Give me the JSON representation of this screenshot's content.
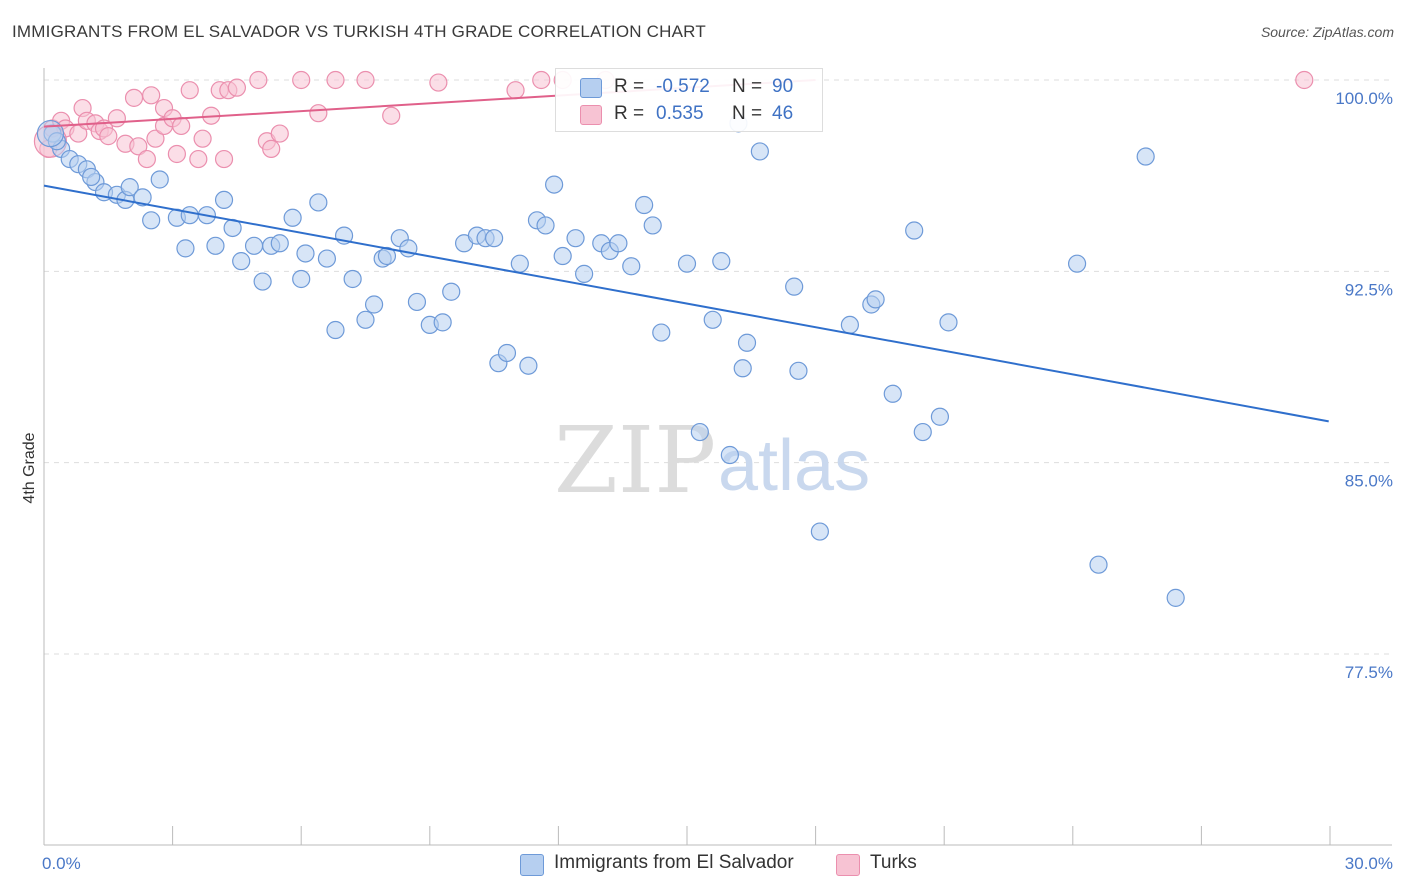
{
  "title": "IMMIGRANTS FROM EL SALVADOR VS TURKISH 4TH GRADE CORRELATION CHART",
  "source": "Source: ZipAtlas.com",
  "watermark": {
    "zip": "ZIP",
    "atlas": "atlas"
  },
  "colors": {
    "blue_fill": "#b6cff0",
    "blue_stroke": "#6e9ad8",
    "blue_line": "#2f6fcc",
    "pink_fill": "#f7c3d3",
    "pink_stroke": "#eb8fae",
    "pink_line": "#e0608a",
    "grid": "#dddddd",
    "tick_text": "#4a78c7"
  },
  "legend": [
    {
      "r_label": "R =",
      "r_value": "-0.572",
      "n_label": "N =",
      "n_value": "90",
      "series": "Immigrants from El Salvador"
    },
    {
      "r_label": "R =",
      "r_value": "0.535",
      "n_label": "N =",
      "n_value": "46",
      "series": "Turks"
    }
  ],
  "chart_data": {
    "type": "scatter",
    "title": "IMMIGRANTS FROM EL SALVADOR VS TURKISH 4TH GRADE CORRELATION CHART",
    "xlabel": "",
    "ylabel": "4th Grade",
    "xlim": [
      0,
      30
    ],
    "ylim": [
      70.5,
      101
    ],
    "x_tick_labels": [
      "0.0%",
      "30.0%"
    ],
    "y_ticks": [
      77.5,
      85.0,
      92.5,
      100.0
    ],
    "y_tick_labels": [
      "77.5%",
      "85.0%",
      "92.5%",
      "100.0%"
    ],
    "grid": "horizontal dashed",
    "legend_position": "top-center and bottom",
    "series": [
      {
        "name": "Immigrants from El Salvador",
        "color": "#b6cff0",
        "r": -0.572,
        "n": 90,
        "trend": {
          "x": [
            0,
            29.97
          ],
          "y": [
            95.86,
            86.62
          ]
        },
        "points": [
          [
            0.2,
            97.9
          ],
          [
            0.4,
            97.3
          ],
          [
            0.6,
            96.9
          ],
          [
            0.8,
            96.7
          ],
          [
            1.0,
            96.5
          ],
          [
            1.2,
            96.0
          ],
          [
            1.4,
            95.6
          ],
          [
            1.7,
            95.5
          ],
          [
            1.9,
            95.3
          ],
          [
            2.0,
            95.8
          ],
          [
            2.3,
            95.4
          ],
          [
            2.5,
            94.5
          ],
          [
            2.7,
            96.1
          ],
          [
            3.1,
            94.6
          ],
          [
            3.4,
            94.7
          ],
          [
            3.8,
            94.7
          ],
          [
            3.3,
            93.4
          ],
          [
            4.0,
            93.5
          ],
          [
            4.2,
            95.3
          ],
          [
            4.4,
            94.2
          ],
          [
            4.6,
            92.9
          ],
          [
            4.9,
            93.5
          ],
          [
            5.1,
            92.1
          ],
          [
            5.3,
            93.5
          ],
          [
            5.5,
            93.6
          ],
          [
            5.8,
            94.6
          ],
          [
            6.0,
            92.2
          ],
          [
            6.1,
            93.2
          ],
          [
            6.4,
            95.2
          ],
          [
            6.6,
            93.0
          ],
          [
            6.8,
            90.2
          ],
          [
            7.0,
            93.9
          ],
          [
            7.2,
            92.2
          ],
          [
            7.5,
            90.6
          ],
          [
            7.7,
            91.2
          ],
          [
            7.9,
            93.0
          ],
          [
            8.0,
            93.1
          ],
          [
            8.3,
            93.8
          ],
          [
            8.5,
            93.4
          ],
          [
            8.7,
            91.3
          ],
          [
            9.0,
            90.4
          ],
          [
            9.3,
            90.5
          ],
          [
            9.5,
            91.7
          ],
          [
            9.8,
            93.6
          ],
          [
            10.1,
            93.9
          ],
          [
            10.3,
            93.8
          ],
          [
            10.5,
            93.8
          ],
          [
            10.6,
            88.9
          ],
          [
            10.8,
            89.3
          ],
          [
            11.1,
            92.8
          ],
          [
            11.3,
            88.8
          ],
          [
            11.5,
            94.5
          ],
          [
            11.7,
            94.3
          ],
          [
            11.9,
            95.9
          ],
          [
            12.1,
            93.1
          ],
          [
            12.4,
            93.8
          ],
          [
            12.6,
            92.4
          ],
          [
            13.0,
            93.6
          ],
          [
            13.2,
            93.3
          ],
          [
            13.4,
            93.6
          ],
          [
            13.7,
            92.7
          ],
          [
            14.0,
            95.1
          ],
          [
            14.2,
            94.3
          ],
          [
            14.4,
            90.1
          ],
          [
            15.0,
            92.8
          ],
          [
            15.3,
            86.2
          ],
          [
            15.6,
            90.6
          ],
          [
            15.8,
            92.9
          ],
          [
            16.0,
            85.3
          ],
          [
            16.2,
            98.3
          ],
          [
            16.3,
            88.7
          ],
          [
            16.4,
            89.7
          ],
          [
            16.7,
            97.2
          ],
          [
            17.5,
            91.9
          ],
          [
            17.6,
            88.6
          ],
          [
            18.1,
            82.3
          ],
          [
            18.8,
            90.4
          ],
          [
            19.3,
            91.2
          ],
          [
            19.4,
            91.4
          ],
          [
            19.8,
            87.7
          ],
          [
            20.3,
            94.1
          ],
          [
            20.5,
            86.2
          ],
          [
            20.9,
            86.8
          ],
          [
            21.1,
            90.5
          ],
          [
            24.1,
            92.8
          ],
          [
            24.6,
            81.0
          ],
          [
            25.7,
            97.0
          ],
          [
            26.4,
            79.7
          ],
          [
            0.3,
            97.6
          ],
          [
            1.1,
            96.2
          ]
        ]
      },
      {
        "name": "Turks",
        "color": "#f7c3d3",
        "r": 0.535,
        "n": 46,
        "trend": {
          "x": [
            0,
            18.0
          ],
          "y": [
            98.17,
            100.0
          ]
        },
        "points": [
          [
            0.1,
            97.3
          ],
          [
            0.2,
            98.1
          ],
          [
            0.4,
            98.4
          ],
          [
            0.5,
            98.1
          ],
          [
            0.8,
            97.9
          ],
          [
            0.9,
            98.9
          ],
          [
            1.0,
            98.4
          ],
          [
            1.2,
            98.3
          ],
          [
            1.3,
            98.0
          ],
          [
            1.4,
            98.1
          ],
          [
            1.5,
            97.8
          ],
          [
            1.7,
            98.5
          ],
          [
            1.9,
            97.5
          ],
          [
            2.1,
            99.3
          ],
          [
            2.2,
            97.4
          ],
          [
            2.4,
            96.9
          ],
          [
            2.5,
            99.4
          ],
          [
            2.6,
            97.7
          ],
          [
            2.8,
            98.2
          ],
          [
            2.8,
            98.9
          ],
          [
            3.0,
            98.5
          ],
          [
            3.1,
            97.1
          ],
          [
            3.2,
            98.2
          ],
          [
            3.4,
            99.6
          ],
          [
            3.6,
            96.9
          ],
          [
            3.7,
            97.7
          ],
          [
            3.9,
            98.6
          ],
          [
            4.1,
            99.6
          ],
          [
            4.2,
            96.9
          ],
          [
            4.3,
            99.6
          ],
          [
            4.5,
            99.7
          ],
          [
            5.0,
            100.0
          ],
          [
            5.2,
            97.6
          ],
          [
            5.3,
            97.3
          ],
          [
            5.5,
            97.9
          ],
          [
            6.0,
            100.0
          ],
          [
            6.4,
            98.7
          ],
          [
            6.8,
            100.0
          ],
          [
            7.5,
            100.0
          ],
          [
            8.1,
            98.6
          ],
          [
            9.2,
            99.9
          ],
          [
            11.0,
            99.6
          ],
          [
            11.6,
            100.0
          ],
          [
            12.1,
            100.0
          ],
          [
            13.1,
            100.0
          ],
          [
            29.4,
            100.0
          ]
        ]
      }
    ]
  }
}
